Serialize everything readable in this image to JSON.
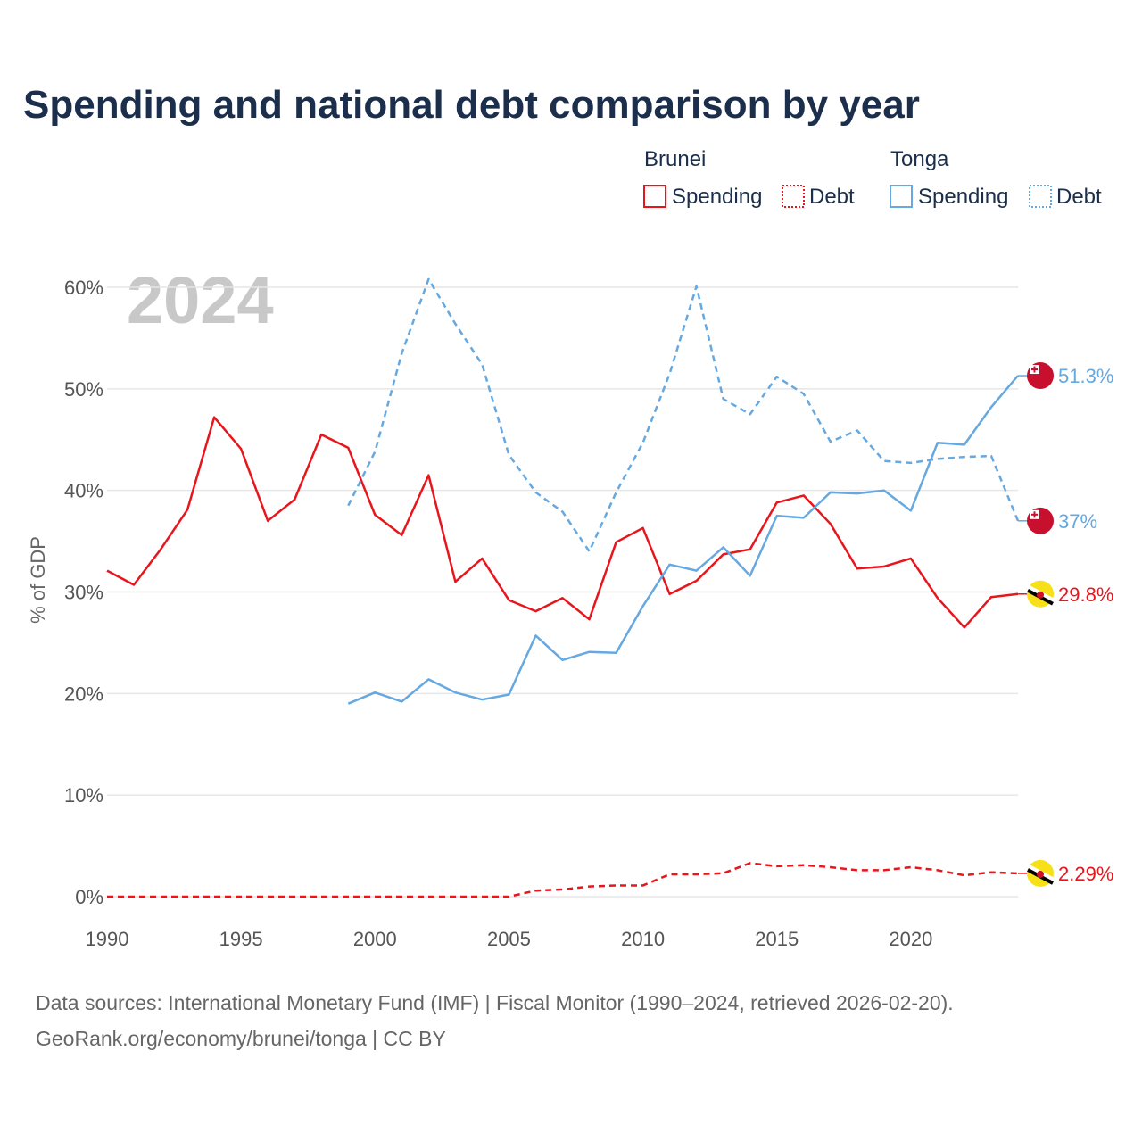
{
  "title": "Spending and national debt comparison by year",
  "legend": {
    "groups": [
      {
        "country": "Brunei",
        "color": "#e8161c",
        "items": [
          {
            "label": "Spending",
            "style": "solid"
          },
          {
            "label": "Debt",
            "style": "dotted"
          }
        ]
      },
      {
        "country": "Tonga",
        "color": "#66a8e0",
        "items": [
          {
            "label": "Spending",
            "style": "solid"
          },
          {
            "label": "Debt",
            "style": "dotted"
          }
        ]
      }
    ]
  },
  "colors": {
    "brunei": "#e8161c",
    "tonga": "#66a8e0",
    "grid": "#e6e6e6",
    "axis_text": "#555555"
  },
  "chart_data": {
    "type": "line",
    "title": "Spending and national debt comparison by year",
    "year_label": "2024",
    "xlabel": "",
    "ylabel": "% of GDP",
    "xlim": [
      1990,
      2024
    ],
    "ylim": [
      0,
      60
    ],
    "x_ticks": [
      1990,
      1995,
      2000,
      2005,
      2010,
      2015,
      2020
    ],
    "y_ticks": [
      0,
      10,
      20,
      30,
      40,
      50,
      60
    ],
    "y_tick_labels": [
      "0%",
      "10%",
      "20%",
      "30%",
      "40%",
      "50%",
      "60%"
    ],
    "series": [
      {
        "name": "Brunei Spending",
        "country": "Brunei",
        "style": "solid",
        "end_label": "29.8%",
        "x": [
          1990,
          1991,
          1992,
          1993,
          1994,
          1995,
          1996,
          1997,
          1998,
          1999,
          2000,
          2001,
          2002,
          2003,
          2004,
          2005,
          2006,
          2007,
          2008,
          2009,
          2010,
          2011,
          2012,
          2013,
          2014,
          2015,
          2016,
          2017,
          2018,
          2019,
          2020,
          2021,
          2022,
          2023,
          2024
        ],
        "values": [
          32.1,
          30.7,
          34.2,
          38.1,
          47.2,
          44.1,
          37,
          39.1,
          45.5,
          44.2,
          37.6,
          35.6,
          41.5,
          31,
          33.3,
          29.2,
          28.1,
          29.4,
          27.3,
          34.9,
          36.3,
          29.8,
          31.1,
          33.7,
          34.2,
          38.8,
          39.5,
          36.7,
          32.3,
          32.5,
          33.3,
          29.4,
          26.5,
          29.5,
          29.8
        ]
      },
      {
        "name": "Brunei Debt",
        "country": "Brunei",
        "style": "dashed",
        "end_label": "2.29%",
        "x": [
          1990,
          1991,
          1992,
          1993,
          1994,
          1995,
          1996,
          1997,
          1998,
          1999,
          2000,
          2001,
          2002,
          2003,
          2004,
          2005,
          2006,
          2007,
          2008,
          2009,
          2010,
          2011,
          2012,
          2013,
          2014,
          2015,
          2016,
          2017,
          2018,
          2019,
          2020,
          2021,
          2022,
          2023,
          2024
        ],
        "values": [
          0,
          0,
          0,
          0,
          0,
          0,
          0,
          0,
          0,
          0,
          0,
          0,
          0,
          0,
          0,
          0,
          0.6,
          0.7,
          1,
          1.1,
          1.1,
          2.2,
          2.2,
          2.3,
          3.3,
          3,
          3.1,
          2.9,
          2.6,
          2.6,
          2.9,
          2.6,
          2.1,
          2.4,
          2.29
        ]
      },
      {
        "name": "Tonga Spending",
        "country": "Tonga",
        "style": "solid",
        "end_label": "51.3%",
        "x": [
          1999,
          2000,
          2001,
          2002,
          2003,
          2004,
          2005,
          2006,
          2007,
          2008,
          2009,
          2010,
          2011,
          2012,
          2013,
          2014,
          2015,
          2016,
          2017,
          2018,
          2019,
          2020,
          2021,
          2022,
          2023,
          2024
        ],
        "values": [
          19,
          20.1,
          19.2,
          21.4,
          20.1,
          19.4,
          19.9,
          25.7,
          23.3,
          24.1,
          24,
          28.6,
          32.7,
          32.1,
          34.4,
          31.6,
          37.5,
          37.3,
          39.8,
          39.7,
          40,
          38,
          44.7,
          44.5,
          48.2,
          51.3
        ]
      },
      {
        "name": "Tonga Debt",
        "country": "Tonga",
        "style": "dashed",
        "end_label": "37%",
        "x": [
          1999,
          2000,
          2001,
          2002,
          2003,
          2004,
          2005,
          2006,
          2007,
          2008,
          2009,
          2010,
          2011,
          2012,
          2013,
          2014,
          2015,
          2016,
          2017,
          2018,
          2019,
          2020,
          2021,
          2022,
          2023,
          2024
        ],
        "values": [
          38.5,
          43.8,
          53.5,
          60.8,
          56.4,
          52.4,
          43.5,
          39.8,
          37.9,
          34,
          39.8,
          44.7,
          51.5,
          60.1,
          49,
          47.5,
          51.2,
          49.5,
          44.8,
          45.9,
          42.9,
          42.7,
          43.1,
          43.3,
          43.4,
          37
        ]
      }
    ]
  },
  "footer": {
    "source": "Data sources: International Monetary Fund (IMF) | Fiscal Monitor (1990–2024, retrieved 2026-02-20).",
    "credit": "GeoRank.org/economy/brunei/tonga | CC BY"
  }
}
